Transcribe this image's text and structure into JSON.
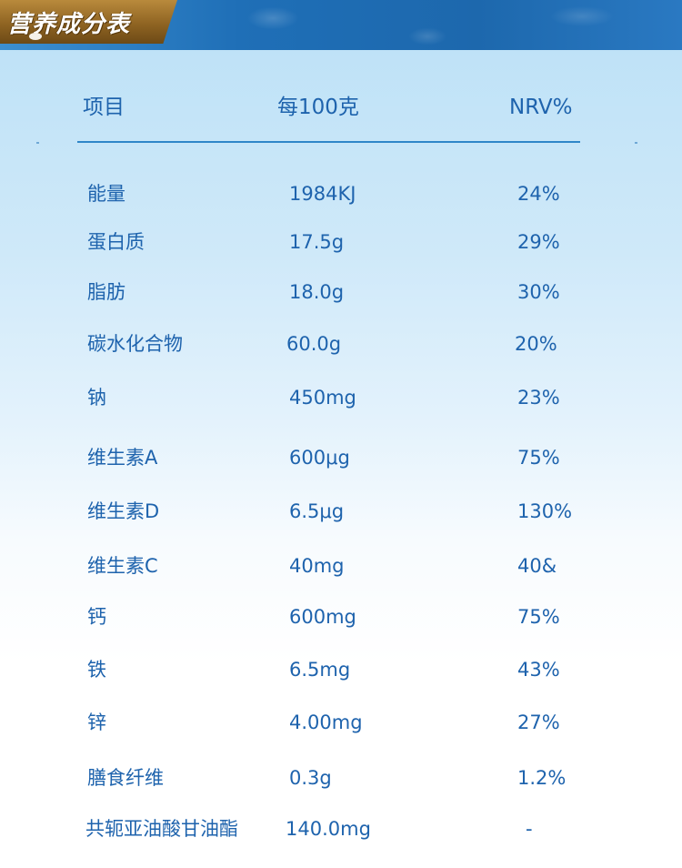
{
  "banner": {
    "title": "营养成分表"
  },
  "table": {
    "headers": [
      "项目",
      "每100克",
      "NRV%"
    ],
    "rows": [
      {
        "item": "能量",
        "per100g": "1984KJ",
        "nrv": "24%"
      },
      {
        "item": "蛋白质",
        "per100g": "17.5g",
        "nrv": "29%"
      },
      {
        "item": "脂肪",
        "per100g": "18.0g",
        "nrv": "30%"
      },
      {
        "item": "碳水化合物",
        "per100g": "60.0g",
        "nrv": "20%"
      },
      {
        "item": "钠",
        "per100g": "450mg",
        "nrv": "23%"
      },
      {
        "item": "维生素A",
        "per100g": "600μg",
        "nrv": "75%"
      },
      {
        "item": "维生素D",
        "per100g": "6.5μg",
        "nrv": "130%"
      },
      {
        "item": "维生素C",
        "per100g": "40mg",
        "nrv": "40&"
      },
      {
        "item": "钙",
        "per100g": "600mg",
        "nrv": "75%"
      },
      {
        "item": "铁",
        "per100g": "6.5mg",
        "nrv": "43%"
      },
      {
        "item": "锌",
        "per100g": "4.00mg",
        "nrv": "27%"
      },
      {
        "item": "膳食纤维",
        "per100g": "0.3g",
        "nrv": "1.2%"
      },
      {
        "item": "共轭亚油酸甘油酯",
        "per100g": "140.0mg",
        "nrv": "-"
      }
    ]
  }
}
